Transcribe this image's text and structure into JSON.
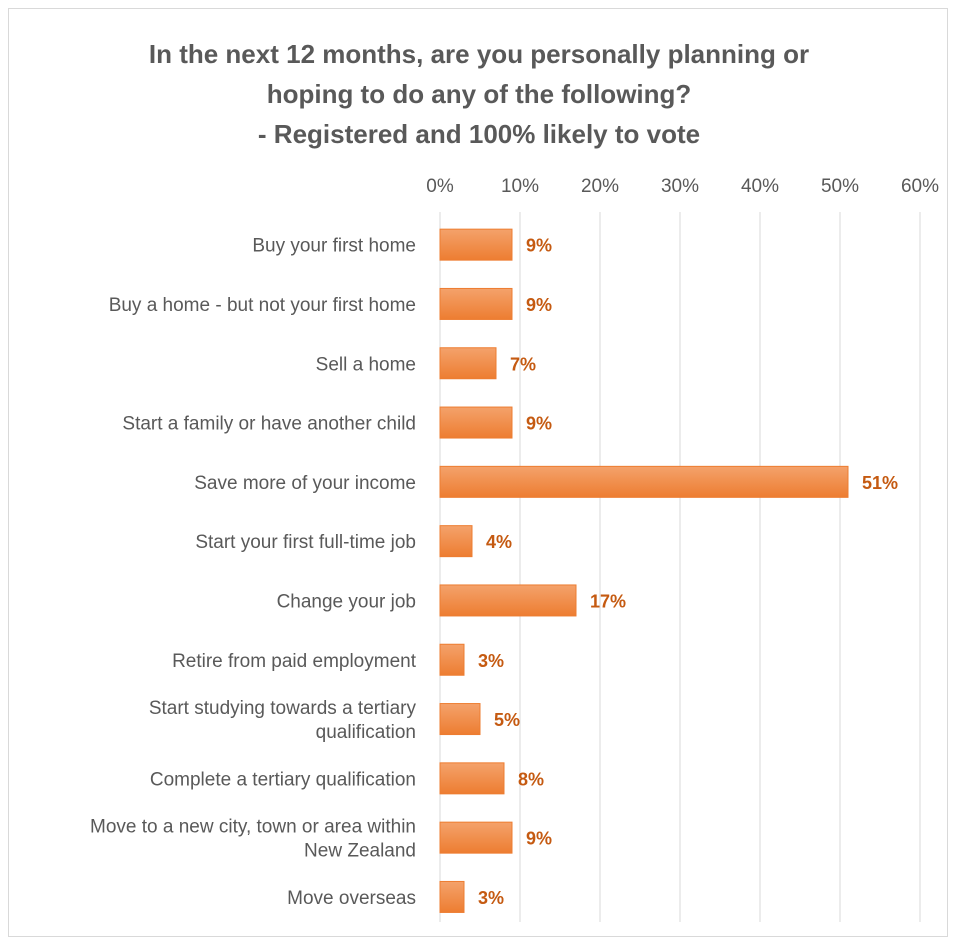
{
  "chart_data": {
    "type": "bar",
    "orientation": "horizontal",
    "title_lines": [
      "In the next 12 months, are you personally planning or",
      "hoping to do any of the following?",
      "- Registered and 100% likely to vote"
    ],
    "categories": [
      [
        "Buy your first home"
      ],
      [
        "Buy a home - but not your first home"
      ],
      [
        "Sell a home"
      ],
      [
        "Start a family or have another child"
      ],
      [
        "Save more of your income"
      ],
      [
        "Start your first full-time job"
      ],
      [
        "Change your job"
      ],
      [
        "Retire from paid employment"
      ],
      [
        "Start studying towards a tertiary",
        "qualification"
      ],
      [
        "Complete a tertiary qualification"
      ],
      [
        "Move to a new city, town or area within",
        "New Zealand"
      ],
      [
        "Move overseas"
      ]
    ],
    "values": [
      9,
      9,
      7,
      9,
      51,
      4,
      17,
      3,
      5,
      8,
      9,
      3
    ],
    "data_labels": [
      "9%",
      "9%",
      "7%",
      "9%",
      "51%",
      "4%",
      "17%",
      "3%",
      "5%",
      "8%",
      "9%",
      "3%"
    ],
    "xlim": [
      0,
      60
    ],
    "x_ticks": [
      0,
      10,
      20,
      30,
      40,
      50,
      60
    ],
    "x_tick_labels": [
      "0%",
      "10%",
      "20%",
      "30%",
      "40%",
      "50%",
      "60%"
    ],
    "axis_position": "top",
    "grid": true,
    "colors": {
      "bar": "#ed7d31",
      "bar_light": "#f4a26b",
      "label": "#c55a11",
      "grid": "#d9d9d9",
      "text": "#595959"
    }
  }
}
